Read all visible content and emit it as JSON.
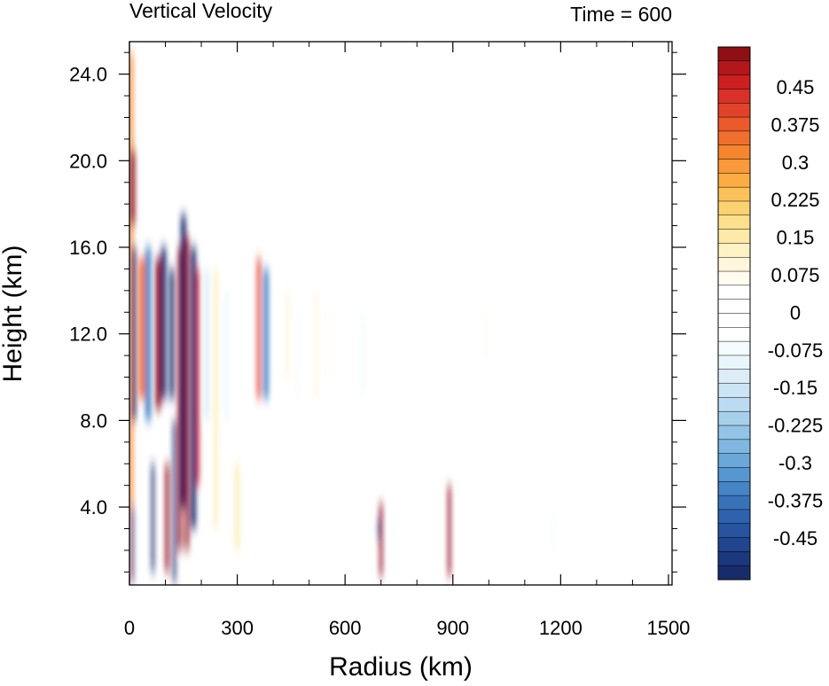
{
  "chart_data": {
    "type": "heatmap",
    "title": "Vertical Velocity",
    "time_label": "Time = 600",
    "xlabel": "Radius (km)",
    "ylabel": "Height (km)",
    "xlim": [
      0,
      1510
    ],
    "ylim": [
      0.4,
      25.5
    ],
    "x_ticks": [
      0,
      300,
      600,
      900,
      1200,
      1500
    ],
    "x_tick_labels": [
      "0",
      "300",
      "600",
      "900",
      "1200",
      "1500"
    ],
    "y_ticks": [
      4.0,
      8.0,
      12.0,
      16.0,
      20.0,
      24.0
    ],
    "y_tick_labels": [
      "4.0",
      "8.0",
      "12.0",
      "16.0",
      "20.0",
      "24.0"
    ],
    "colorbar": {
      "levels": [
        -0.5,
        -0.475,
        -0.45,
        -0.425,
        -0.4,
        -0.375,
        -0.35,
        -0.325,
        -0.3,
        -0.275,
        -0.25,
        -0.225,
        -0.2,
        -0.175,
        -0.15,
        -0.125,
        -0.1,
        -0.075,
        -0.05,
        -0.025,
        0,
        0.025,
        0.05,
        0.075,
        0.1,
        0.125,
        0.15,
        0.175,
        0.2,
        0.225,
        0.25,
        0.275,
        0.3,
        0.325,
        0.35,
        0.375,
        0.4,
        0.425,
        0.45,
        0.475,
        0.5
      ],
      "labels": [
        "0.45",
        "0.375",
        "0.3",
        "0.225",
        "0.15",
        "0.075",
        "0",
        "-0.075",
        "-0.15",
        "-0.225",
        "-0.3",
        "-0.375",
        "-0.45"
      ],
      "colors_top_to_bottom": [
        "#8e1014",
        "#b3161b",
        "#cc1f1f",
        "#d9302a",
        "#e04329",
        "#ea5a2b",
        "#f06f2e",
        "#f5852f",
        "#f8993a",
        "#fbad44",
        "#fbc15a",
        "#fbd272",
        "#fce08e",
        "#fde9a8",
        "#fef1c3",
        "#fff6dc",
        "#fffbee",
        "#ffffff",
        "#ffffff",
        "#ffffff",
        "#ffffff",
        "#f5fafd",
        "#eaf4fb",
        "#dcedf8",
        "#cce4f4",
        "#bbdbf0",
        "#a8d0eb",
        "#93c4e6",
        "#7fb7e0",
        "#6aa8d9",
        "#5697d0",
        "#4585c6",
        "#3873ba",
        "#2e62ad",
        "#27539f",
        "#21458f",
        "#1b387f",
        "#172c6b"
      ]
    },
    "bands": [
      {
        "x": 5,
        "w": 10,
        "y0": 0.5,
        "y1": 25,
        "v": 0.3
      },
      {
        "x": 8,
        "w": 14,
        "y0": 17,
        "y1": 20.5,
        "v": 0.5
      },
      {
        "x": 12,
        "w": 12,
        "y0": 8,
        "y1": 16,
        "v": -0.5
      },
      {
        "x": 8,
        "w": 8,
        "y0": 0.5,
        "y1": 4,
        "v": -0.45
      },
      {
        "x": 35,
        "w": 16,
        "y0": 9,
        "y1": 15.5,
        "v": 0.35
      },
      {
        "x": 52,
        "w": 16,
        "y0": 8,
        "y1": 16,
        "v": -0.35
      },
      {
        "x": 65,
        "w": 8,
        "y0": 1,
        "y1": 6,
        "v": -0.5
      },
      {
        "x": 80,
        "w": 14,
        "y0": 8.5,
        "y1": 15.5,
        "v": 0.5
      },
      {
        "x": 95,
        "w": 14,
        "y0": 9,
        "y1": 16,
        "v": -0.5
      },
      {
        "x": 105,
        "w": 10,
        "y0": 1,
        "y1": 6,
        "v": 0.5
      },
      {
        "x": 118,
        "w": 12,
        "y0": 9,
        "y1": 15,
        "v": -0.5
      },
      {
        "x": 125,
        "w": 8,
        "y0": 0.5,
        "y1": 8,
        "v": -0.5
      },
      {
        "x": 140,
        "w": 10,
        "y0": 2,
        "y1": 16,
        "v": 0.5
      },
      {
        "x": 150,
        "w": 14,
        "y0": 4,
        "y1": 17.5,
        "v": -0.5
      },
      {
        "x": 160,
        "w": 10,
        "y0": 2,
        "y1": 16.5,
        "v": 0.5
      },
      {
        "x": 178,
        "w": 14,
        "y0": 3,
        "y1": 16,
        "v": -0.5
      },
      {
        "x": 190,
        "w": 8,
        "y0": 5,
        "y1": 15,
        "v": 0.45
      },
      {
        "x": 215,
        "w": 8,
        "y0": 8,
        "y1": 15,
        "v": -0.15
      },
      {
        "x": 240,
        "w": 8,
        "y0": 3,
        "y1": 15,
        "v": 0.15
      },
      {
        "x": 270,
        "w": 8,
        "y0": 8,
        "y1": 14,
        "v": -0.1
      },
      {
        "x": 300,
        "w": 10,
        "y0": 2,
        "y1": 6,
        "v": 0.15
      },
      {
        "x": 360,
        "w": 10,
        "y0": 9,
        "y1": 15.5,
        "v": 0.4
      },
      {
        "x": 380,
        "w": 14,
        "y0": 9,
        "y1": 15,
        "v": -0.35
      },
      {
        "x": 440,
        "w": 10,
        "y0": 10,
        "y1": 14,
        "v": 0.1
      },
      {
        "x": 470,
        "w": 8,
        "y0": 9,
        "y1": 13,
        "v": -0.08
      },
      {
        "x": 520,
        "w": 8,
        "y0": 9,
        "y1": 14,
        "v": 0.1
      },
      {
        "x": 560,
        "w": 8,
        "y0": 10,
        "y1": 13,
        "v": 0.08
      },
      {
        "x": 650,
        "w": 12,
        "y0": 9,
        "y1": 13,
        "v": -0.08
      },
      {
        "x": 700,
        "w": 8,
        "y0": 0.8,
        "y1": 4.2,
        "v": 0.5
      },
      {
        "x": 695,
        "w": 6,
        "y0": 2.5,
        "y1": 3.5,
        "v": -0.5
      },
      {
        "x": 890,
        "w": 8,
        "y0": 0.8,
        "y1": 5,
        "v": 0.5
      },
      {
        "x": 990,
        "w": 8,
        "y0": 11,
        "y1": 13,
        "v": 0.06
      },
      {
        "x": 1180,
        "w": 8,
        "y0": 2,
        "y1": 3.5,
        "v": -0.06
      }
    ]
  }
}
